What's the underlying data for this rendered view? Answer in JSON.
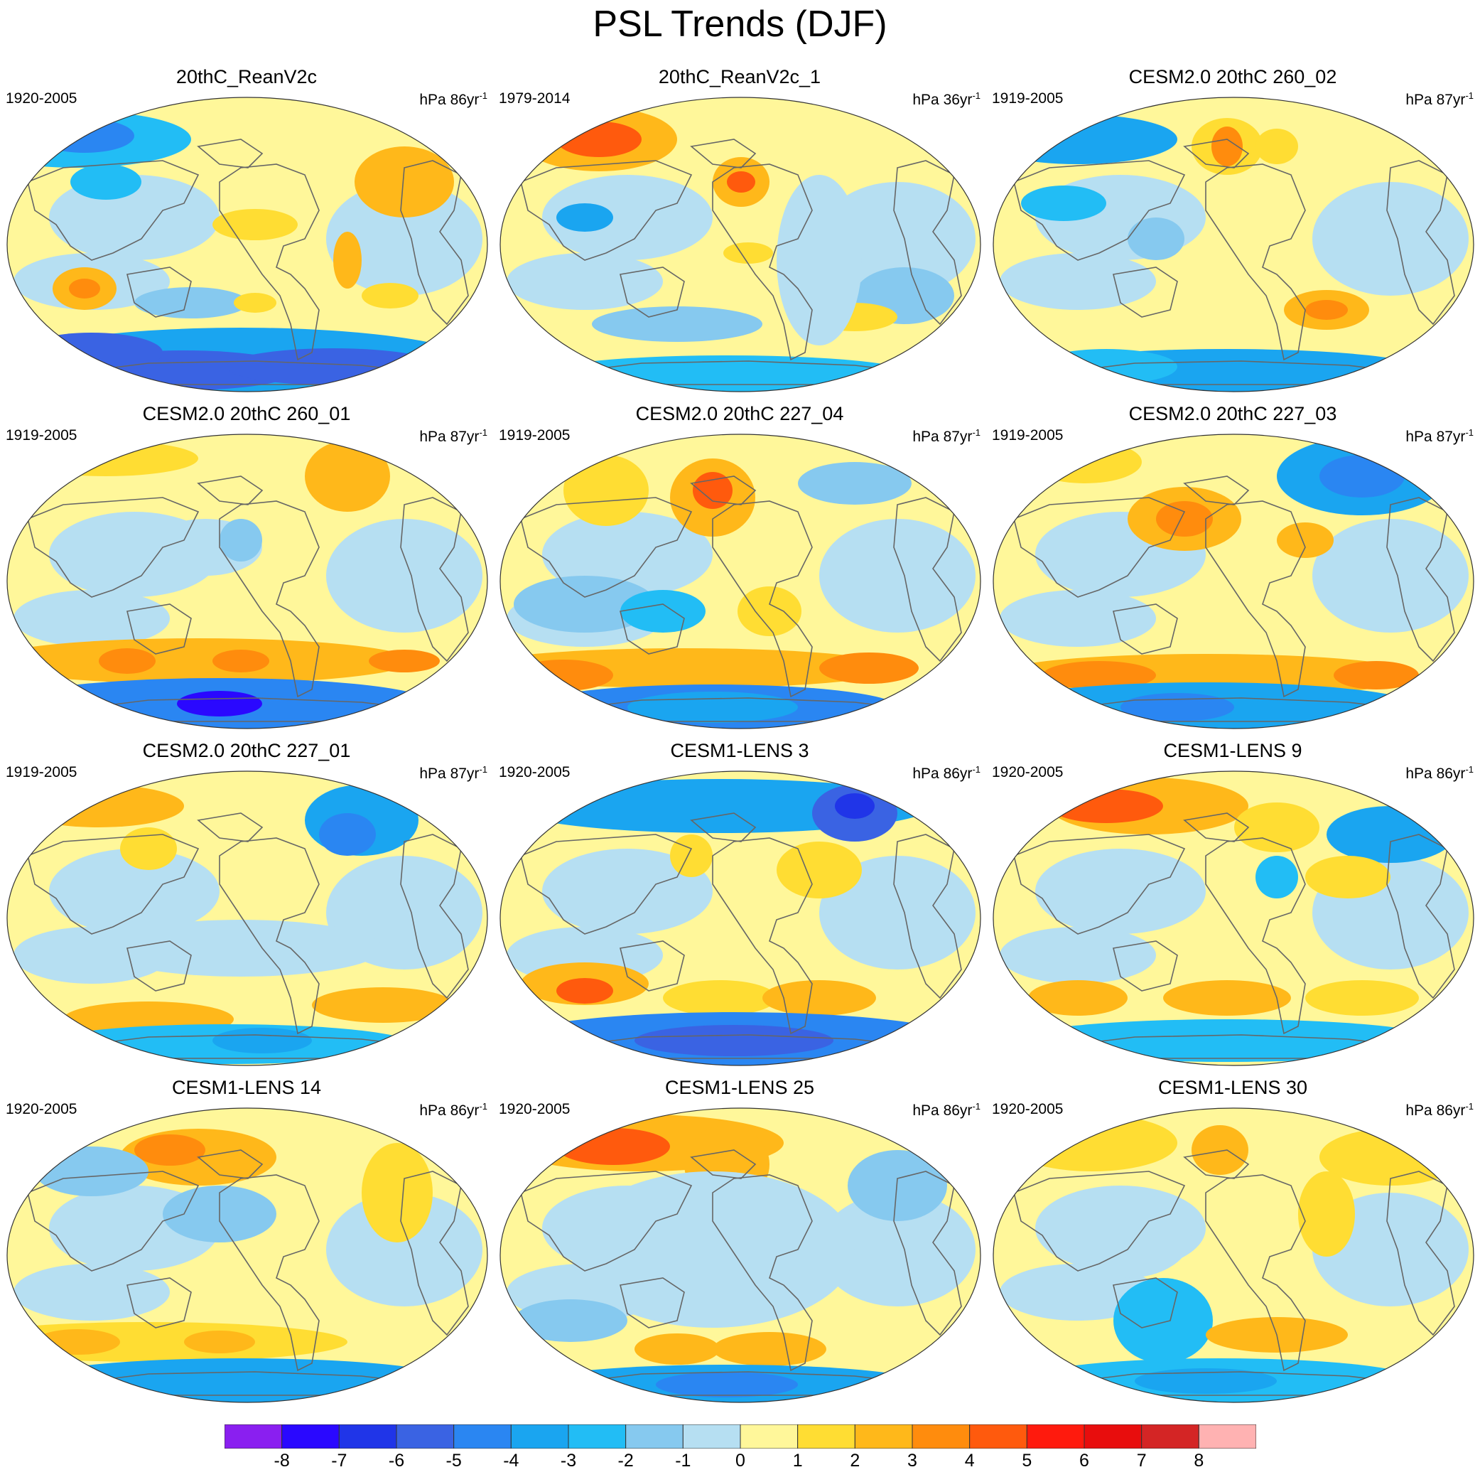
{
  "title": "PSL Trends (DJF)",
  "colorbar": {
    "levels": [
      -8,
      -7,
      -6,
      -5,
      -4,
      -3,
      -2,
      -1,
      0,
      1,
      2,
      3,
      4,
      5,
      6,
      7,
      8
    ],
    "colors": [
      "#8a1ff0",
      "#2a08ff",
      "#2035e8",
      "#3a63e3",
      "#2a86f2",
      "#1aa5f0",
      "#22bdf5",
      "#86c9ef",
      "#b6dff2",
      "#fff79a",
      "#ffdd33",
      "#ffb81a",
      "#ff8c0d",
      "#ff5a0d",
      "#ff1a0d",
      "#e80d0d",
      "#d42525",
      "#ffb2b2"
    ]
  },
  "panels": [
    {
      "title": "20thC_ReanV2c",
      "period": "1920-2005",
      "units_prefix": "hPa 86yr",
      "units_exp": "-1"
    },
    {
      "title": "20thC_ReanV2c_1",
      "period": "1979-2014",
      "units_prefix": "hPa 36yr",
      "units_exp": "-1"
    },
    {
      "title": "CESM2.0 20thC 260_02",
      "period": "1919-2005",
      "units_prefix": "hPa 87yr",
      "units_exp": "-1"
    },
    {
      "title": "CESM2.0 20thC 260_01",
      "period": "1919-2005",
      "units_prefix": "hPa 87yr",
      "units_exp": "-1"
    },
    {
      "title": "CESM2.0 20thC 227_04",
      "period": "1919-2005",
      "units_prefix": "hPa 87yr",
      "units_exp": "-1"
    },
    {
      "title": "CESM2.0 20thC 227_03",
      "period": "1919-2005",
      "units_prefix": "hPa 87yr",
      "units_exp": "-1"
    },
    {
      "title": "CESM2.0 20thC 227_01",
      "period": "1919-2005",
      "units_prefix": "hPa 87yr",
      "units_exp": "-1"
    },
    {
      "title": "CESM1-LENS 3",
      "period": "1920-2005",
      "units_prefix": "hPa 86yr",
      "units_exp": "-1"
    },
    {
      "title": "CESM1-LENS 9",
      "period": "1920-2005",
      "units_prefix": "hPa 86yr",
      "units_exp": "-1"
    },
    {
      "title": "CESM1-LENS 14",
      "period": "1920-2005",
      "units_prefix": "hPa 86yr",
      "units_exp": "-1"
    },
    {
      "title": "CESM1-LENS 25",
      "period": "1920-2005",
      "units_prefix": "hPa 86yr",
      "units_exp": "-1"
    },
    {
      "title": "CESM1-LENS 30",
      "period": "1920-2005",
      "units_prefix": "hPa 86yr",
      "units_exp": "-1"
    }
  ]
}
